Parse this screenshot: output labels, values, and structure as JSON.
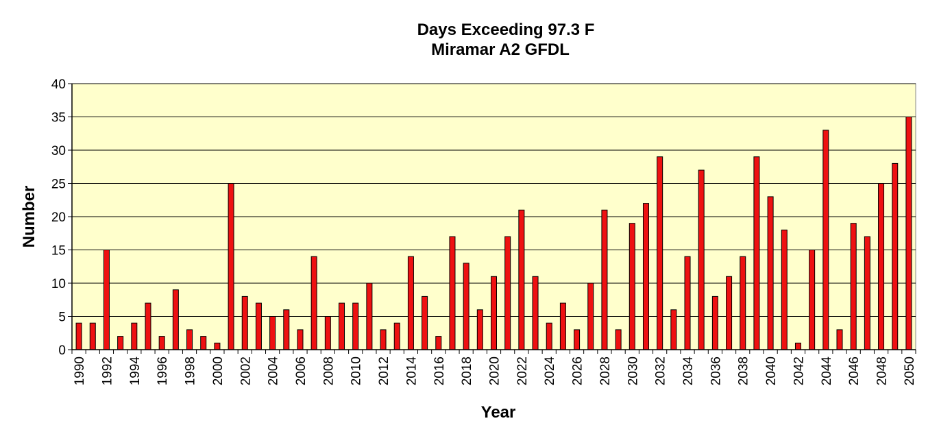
{
  "chart_data": {
    "type": "bar",
    "title": "Days Exceeding 97.3 F",
    "subtitle": "Miramar A2 GFDL",
    "xlabel": "Year",
    "ylabel": "Number",
    "ylim": [
      0,
      40
    ],
    "yticks": [
      0,
      5,
      10,
      15,
      20,
      25,
      30,
      35,
      40
    ],
    "x_tick_labels": [
      "1990",
      "1992",
      "1994",
      "1996",
      "1998",
      "2000",
      "2002",
      "2004",
      "2006",
      "2008",
      "2010",
      "2012",
      "2014",
      "2016",
      "2018",
      "2020",
      "2022",
      "2024",
      "2026",
      "2028",
      "2030",
      "2032",
      "2034",
      "2036",
      "2038",
      "2040",
      "2042",
      "2044",
      "2046",
      "2048",
      "2050"
    ],
    "grid": true,
    "legend": "none",
    "categories": [
      "1990",
      "1991",
      "1992",
      "1993",
      "1994",
      "1995",
      "1996",
      "1997",
      "1998",
      "1999",
      "2000",
      "2001",
      "2002",
      "2003",
      "2004",
      "2005",
      "2006",
      "2007",
      "2008",
      "2009",
      "2010",
      "2011",
      "2012",
      "2013",
      "2014",
      "2015",
      "2016",
      "2017",
      "2018",
      "2019",
      "2020",
      "2021",
      "2022",
      "2023",
      "2024",
      "2025",
      "2026",
      "2027",
      "2028",
      "2029",
      "2030",
      "2031",
      "2032",
      "2033",
      "2034",
      "2035",
      "2036",
      "2037",
      "2038",
      "2039",
      "2040",
      "2041",
      "2042",
      "2043",
      "2044",
      "2045",
      "2046",
      "2047",
      "2048",
      "2049",
      "2050"
    ],
    "values": [
      4,
      4,
      15,
      2,
      4,
      7,
      2,
      9,
      3,
      2,
      1,
      25,
      8,
      7,
      5,
      6,
      3,
      14,
      5,
      7,
      7,
      10,
      3,
      4,
      14,
      8,
      2,
      17,
      13,
      6,
      11,
      17,
      21,
      11,
      4,
      7,
      3,
      10,
      21,
      3,
      19,
      22,
      29,
      6,
      14,
      27,
      8,
      11,
      14,
      29,
      23,
      18,
      1,
      15,
      33,
      3,
      19,
      17,
      25,
      28,
      35
    ],
    "colors": {
      "bar": "#ee1111",
      "bar_outline": "#000000",
      "plot_background": "#ffffcc",
      "gridline": "#000000"
    }
  }
}
